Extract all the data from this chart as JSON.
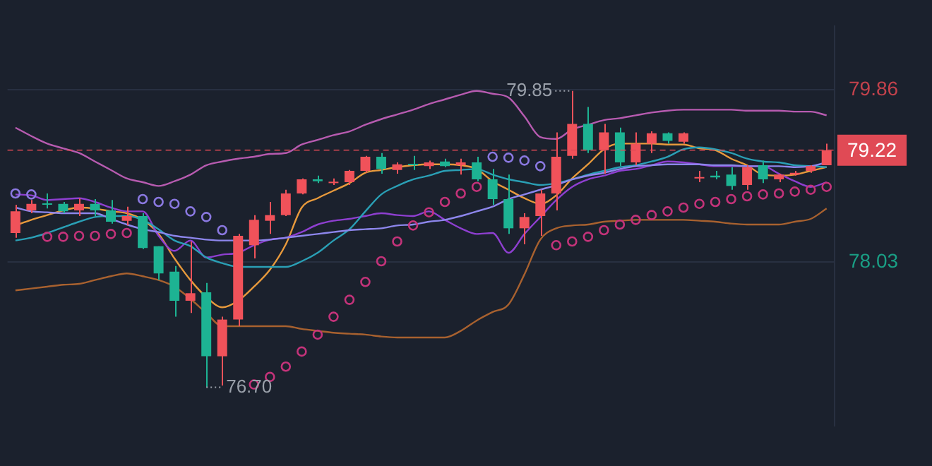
{
  "chart_data": {
    "type": "candlestick",
    "categories": [
      null,
      null,
      null,
      null,
      null,
      null,
      null,
      null,
      null,
      null,
      null,
      null,
      null,
      null,
      null,
      null,
      null,
      null,
      null,
      null,
      null,
      null,
      null,
      null,
      null,
      null,
      null,
      null,
      null,
      null,
      null,
      null,
      null,
      null,
      null,
      null,
      null,
      null,
      null,
      null,
      null,
      null,
      null,
      null,
      null,
      null,
      null,
      null,
      null,
      null,
      null,
      null
    ],
    "ohlc": [
      [
        78.34,
        78.64,
        78.29,
        78.57
      ],
      [
        78.58,
        78.69,
        78.55,
        78.65
      ],
      [
        78.65,
        78.76,
        78.6,
        78.64
      ],
      [
        78.65,
        78.67,
        78.55,
        78.57
      ],
      [
        78.58,
        78.71,
        78.52,
        78.65
      ],
      [
        78.65,
        78.7,
        78.52,
        78.58
      ],
      [
        78.58,
        78.69,
        78.44,
        78.46
      ],
      [
        78.47,
        78.62,
        78.42,
        78.52
      ],
      [
        78.52,
        78.55,
        78.17,
        78.18
      ],
      [
        78.2,
        78.2,
        77.84,
        77.91
      ],
      [
        77.93,
        77.99,
        77.45,
        77.62
      ],
      [
        77.62,
        78.25,
        77.49,
        77.7
      ],
      [
        77.71,
        77.81,
        76.7,
        77.03
      ],
      [
        77.03,
        77.45,
        76.72,
        77.42
      ],
      [
        77.42,
        78.33,
        77.35,
        78.31
      ],
      [
        78.21,
        78.53,
        78.07,
        78.48
      ],
      [
        78.47,
        78.67,
        78.33,
        78.53
      ],
      [
        78.53,
        78.8,
        78.52,
        78.76
      ],
      [
        78.76,
        78.92,
        78.75,
        78.91
      ],
      [
        78.91,
        78.95,
        78.87,
        78.89
      ],
      [
        78.87,
        78.92,
        78.85,
        78.88
      ],
      [
        78.88,
        79.01,
        78.85,
        79.0
      ],
      [
        79.0,
        79.16,
        78.98,
        79.15
      ],
      [
        79.15,
        79.19,
        78.97,
        79.02
      ],
      [
        79.01,
        79.09,
        78.97,
        79.07
      ],
      [
        79.07,
        79.16,
        79.01,
        79.06
      ],
      [
        79.05,
        79.11,
        79.02,
        79.09
      ],
      [
        79.1,
        79.13,
        79.04,
        79.05
      ],
      [
        79.06,
        79.13,
        78.96,
        79.09
      ],
      [
        79.09,
        79.15,
        78.89,
        78.91
      ],
      [
        78.91,
        79.02,
        78.64,
        78.7
      ],
      [
        78.7,
        78.96,
        78.33,
        78.39
      ],
      [
        78.39,
        78.55,
        78.22,
        78.51
      ],
      [
        78.52,
        78.8,
        78.31,
        78.76
      ],
      [
        78.76,
        79.41,
        78.58,
        79.15
      ],
      [
        79.16,
        79.85,
        79.13,
        79.5
      ],
      [
        79.5,
        79.68,
        79.19,
        79.22
      ],
      [
        79.22,
        79.5,
        78.97,
        79.41
      ],
      [
        79.41,
        79.46,
        79.05,
        79.09
      ],
      [
        79.09,
        79.41,
        79.06,
        79.29
      ],
      [
        79.29,
        79.42,
        79.19,
        79.4
      ],
      [
        79.4,
        79.41,
        79.29,
        79.32
      ],
      [
        79.31,
        79.41,
        79.29,
        79.4
      ],
      [
        78.92,
        79.0,
        78.88,
        78.93
      ],
      [
        78.95,
        79.0,
        78.91,
        78.93
      ],
      [
        78.96,
        79.04,
        78.8,
        78.84
      ],
      [
        78.85,
        79.06,
        78.8,
        79.04
      ],
      [
        79.06,
        79.11,
        78.87,
        78.91
      ],
      [
        78.91,
        78.97,
        78.88,
        78.96
      ],
      [
        78.96,
        79.0,
        78.95,
        78.98
      ],
      [
        79.0,
        79.06,
        78.98,
        79.05
      ],
      [
        79.06,
        79.29,
        79.06,
        79.22
      ]
    ],
    "colors": [
      "#f0525a",
      "#f0525a",
      "#1db393",
      "#1db393",
      "#f0525a",
      "#1db393",
      "#1db393",
      "#f0525a",
      "#1db393",
      "#1db393",
      "#1db393",
      "#f0525a",
      "#1db393",
      "#f0525a",
      "#f0525a",
      "#f0525a",
      "#f0525a",
      "#f0525a",
      "#f0525a",
      "#1db393",
      "#f0525a",
      "#f0525a",
      "#f0525a",
      "#1db393",
      "#f0525a",
      "#1db393",
      "#f0525a",
      "#1db393",
      "#f0525a",
      "#1db393",
      "#1db393",
      "#1db393",
      "#f0525a",
      "#f0525a",
      "#f0525a",
      "#f0525a",
      "#1db393",
      "#f0525a",
      "#1db393",
      "#f0525a",
      "#f0525a",
      "#1db393",
      "#f0525a",
      "#f0525a",
      "#1db393",
      "#1db393",
      "#f0525a",
      "#1db393",
      "#f0525a",
      "#f0525a",
      "#f0525a",
      "#f0525a"
    ],
    "series": [
      {
        "type": "line",
        "color": "#b75bb0",
        "values": [
          79.46,
          79.37,
          79.29,
          79.24,
          79.19,
          79.1,
          79.01,
          78.92,
          78.88,
          78.84,
          78.89,
          78.96,
          79.06,
          79.1,
          79.13,
          79.15,
          79.18,
          79.19,
          79.28,
          79.33,
          79.38,
          79.42,
          79.49,
          79.55,
          79.6,
          79.65,
          79.71,
          79.76,
          79.81,
          79.85,
          79.82,
          79.78,
          79.58,
          79.36,
          79.34,
          79.44,
          79.49,
          79.54,
          79.56,
          79.59,
          79.62,
          79.64,
          79.65,
          79.65,
          79.65,
          79.65,
          79.64,
          79.64,
          79.64,
          79.63,
          79.63,
          79.59
        ]
      },
      {
        "type": "line",
        "color": "#a8612f",
        "values": [
          77.73,
          77.75,
          77.77,
          77.79,
          77.8,
          77.84,
          77.88,
          77.91,
          77.88,
          77.84,
          77.77,
          77.64,
          77.49,
          77.35,
          77.35,
          77.35,
          77.35,
          77.35,
          77.32,
          77.3,
          77.28,
          77.27,
          77.26,
          77.24,
          77.23,
          77.23,
          77.23,
          77.23,
          77.3,
          77.41,
          77.5,
          77.58,
          77.9,
          78.27,
          78.39,
          78.42,
          78.43,
          78.46,
          78.47,
          78.48,
          78.48,
          78.48,
          78.48,
          78.47,
          78.46,
          78.44,
          78.43,
          78.43,
          78.43,
          78.46,
          78.49,
          78.6
        ]
      },
      {
        "type": "line",
        "color": "#8d86ec",
        "values": [
          78.61,
          78.57,
          78.56,
          78.55,
          78.55,
          78.55,
          78.49,
          78.43,
          78.38,
          78.35,
          78.31,
          78.29,
          78.27,
          78.26,
          78.26,
          78.26,
          78.27,
          78.29,
          78.31,
          78.33,
          78.35,
          78.37,
          78.38,
          78.39,
          78.42,
          78.43,
          78.46,
          78.48,
          78.52,
          78.57,
          78.62,
          78.7,
          78.75,
          78.8,
          78.85,
          78.91,
          78.95,
          78.98,
          79.02,
          79.05,
          79.06,
          79.07,
          79.07,
          79.07,
          79.06,
          79.06,
          79.05,
          79.05,
          79.05,
          79.04,
          79.05,
          79.09
        ]
      },
      {
        "type": "line",
        "color": "#2a9fb5",
        "values": [
          78.26,
          78.29,
          78.34,
          78.4,
          78.46,
          78.51,
          78.52,
          78.52,
          78.48,
          78.38,
          78.26,
          78.2,
          78.08,
          78.02,
          77.98,
          77.98,
          77.98,
          77.98,
          78.04,
          78.13,
          78.26,
          78.38,
          78.57,
          78.75,
          78.84,
          78.91,
          78.95,
          79.0,
          79.01,
          79.02,
          78.96,
          78.91,
          78.88,
          78.85,
          78.87,
          78.91,
          78.96,
          79.0,
          79.04,
          79.06,
          79.1,
          79.15,
          79.23,
          79.25,
          79.23,
          79.19,
          79.13,
          79.1,
          79.09,
          79.06,
          79.05,
          79.04
        ]
      },
      {
        "type": "line",
        "color": "#8e3fd0",
        "values": [
          78.75,
          78.74,
          78.69,
          78.7,
          78.71,
          78.67,
          78.61,
          78.57,
          78.57,
          78.31,
          78.15,
          78.26,
          78.08,
          78.11,
          78.13,
          78.21,
          78.27,
          78.29,
          78.35,
          78.43,
          78.47,
          78.49,
          78.52,
          78.55,
          78.53,
          78.52,
          78.57,
          78.48,
          78.39,
          78.33,
          78.34,
          78.13,
          78.33,
          78.51,
          78.69,
          78.83,
          78.91,
          78.95,
          79.0,
          79.02,
          79.06,
          79.1,
          79.09,
          79.07,
          79.05,
          79.05,
          79.05,
          79.05,
          78.97,
          78.89,
          78.83,
          78.88
        ]
      },
      {
        "type": "line",
        "color": "#e89a3c",
        "values": [
          78.42,
          78.48,
          78.53,
          78.58,
          78.61,
          78.6,
          78.57,
          78.55,
          78.48,
          78.33,
          78.07,
          77.84,
          77.66,
          77.55,
          77.62,
          77.77,
          77.95,
          78.22,
          78.61,
          78.71,
          78.79,
          78.87,
          78.98,
          79.01,
          79.04,
          79.06,
          79.07,
          79.07,
          79.06,
          79.02,
          78.89,
          78.8,
          78.71,
          78.65,
          78.74,
          78.92,
          79.07,
          79.23,
          79.29,
          79.29,
          79.29,
          79.28,
          79.28,
          79.24,
          79.22,
          79.13,
          79.06,
          78.96,
          78.95,
          78.96,
          79.0,
          79.04
        ]
      },
      {
        "type": "scatter",
        "marker": "circle",
        "color": "#8a78e0",
        "values": [
          78.76,
          78.75,
          null,
          null,
          null,
          null,
          null,
          null,
          78.7,
          78.67,
          78.65,
          78.57,
          78.51,
          78.37,
          null,
          null,
          null,
          null,
          null,
          null,
          null,
          null,
          null,
          null,
          null,
          null,
          null,
          null,
          null,
          null,
          79.15,
          79.14,
          79.11,
          79.05,
          null,
          null,
          null,
          null,
          null,
          null,
          null,
          null,
          null,
          null,
          null,
          null,
          null,
          null,
          null,
          null,
          null,
          null
        ]
      },
      {
        "type": "scatter",
        "marker": "circle",
        "color": "#c4337a",
        "values": [
          null,
          null,
          78.3,
          78.3,
          78.31,
          78.31,
          78.33,
          78.34,
          null,
          null,
          null,
          null,
          null,
          null,
          null,
          76.73,
          76.81,
          76.92,
          77.08,
          77.26,
          77.45,
          77.63,
          77.82,
          78.04,
          78.25,
          78.42,
          78.56,
          78.67,
          78.76,
          78.83,
          null,
          null,
          null,
          null,
          78.21,
          78.25,
          78.3,
          78.37,
          78.43,
          78.48,
          78.53,
          78.57,
          78.61,
          78.65,
          78.67,
          78.7,
          78.73,
          78.75,
          78.76,
          78.78,
          78.8,
          78.83
        ]
      }
    ],
    "ylim": [
      76.29,
      80.54
    ],
    "yticks": [
      79.86,
      78.03
    ],
    "ref_lines": [
      {
        "axis": "y",
        "value": 79.22,
        "label": "79.22",
        "color": "#e04a55",
        "line_style": "dashed"
      }
    ],
    "annotations": [
      "79.85",
      "76.70"
    ],
    "grid": "y",
    "legend": false
  }
}
